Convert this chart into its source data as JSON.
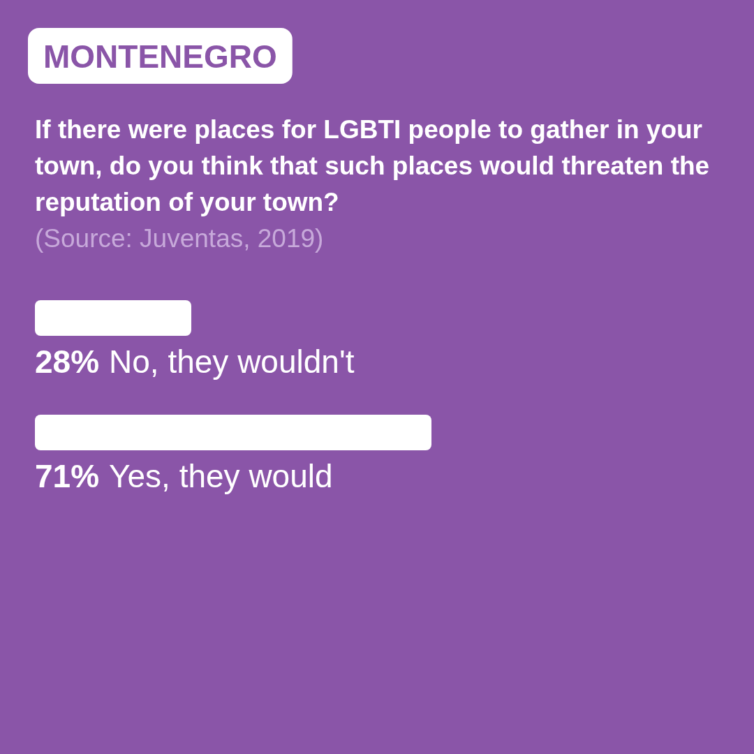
{
  "chart_data": {
    "type": "bar",
    "orientation": "horizontal",
    "title": "MONTENEGRO",
    "subtitle": "If there were places for LGBTI people to gather in your town, do you think that such places would threaten the reputation of your town?",
    "annotations": [
      "(Source: Juventas, 2019)"
    ],
    "categories": [
      "No, they wouldn't",
      "Yes, they would"
    ],
    "values": [
      28,
      71
    ],
    "value_labels": [
      "28%",
      "71%"
    ],
    "color": "#ffffff"
  }
}
